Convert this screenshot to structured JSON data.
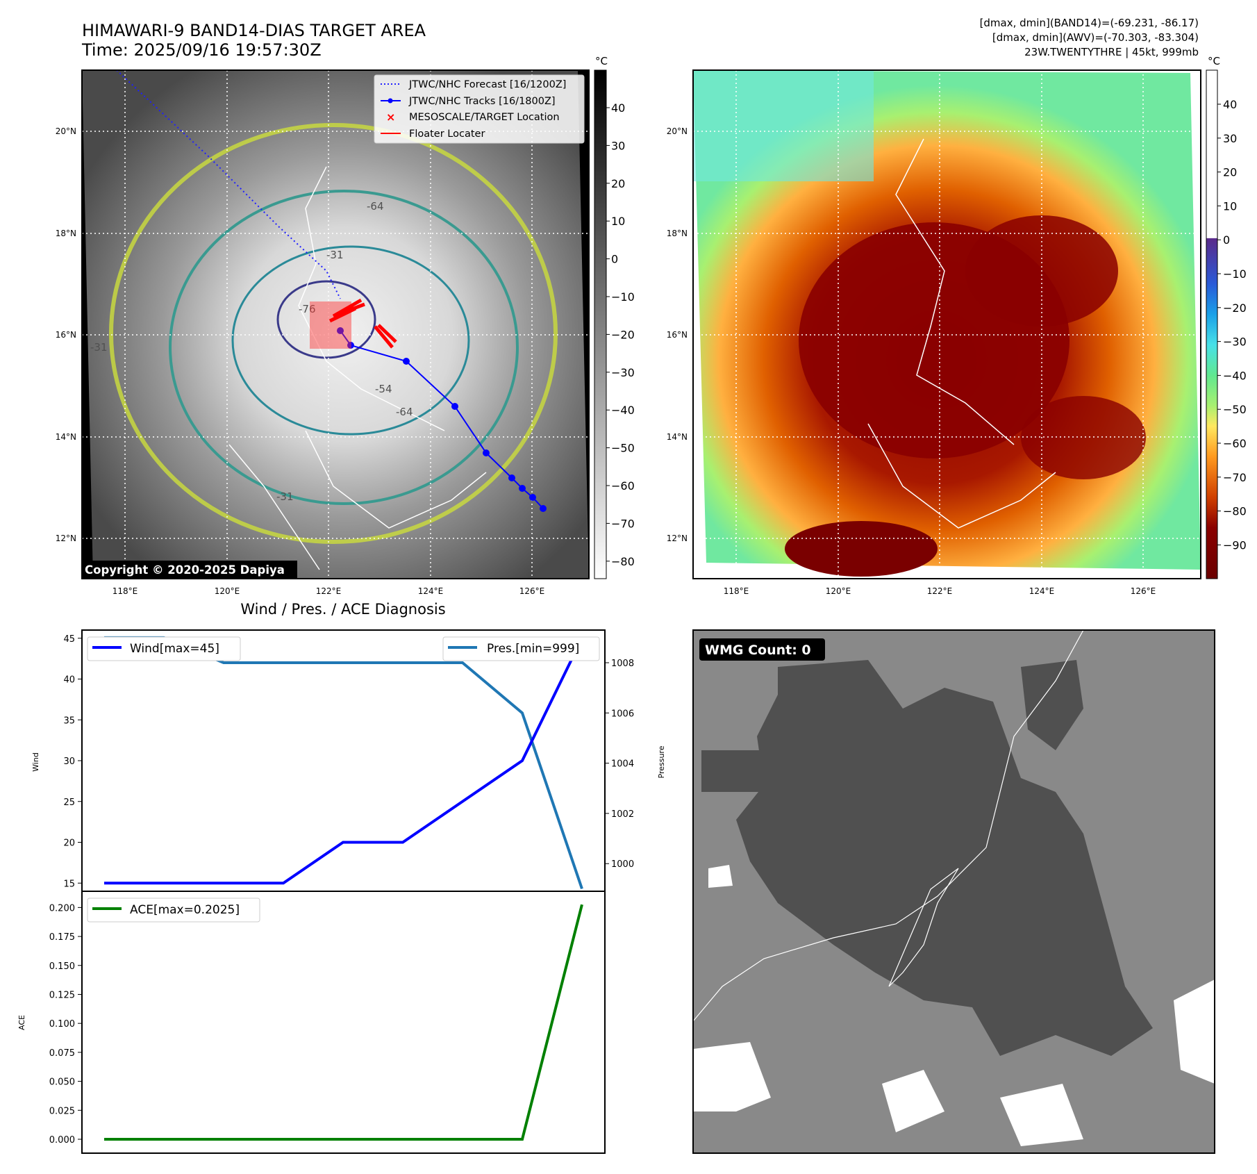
{
  "header": {
    "title_line1": "HIMAWARI-9 BAND14-DIAS TARGET AREA",
    "title_line2": "Time: 2025/09/16 19:57:30Z",
    "info_line1": "[dmax, dmin](BAND14)=(-69.231, -86.17)",
    "info_line2": "[dmax, dmin](AWV)=(-70.303, -83.304)",
    "info_line3": "23W.TWENTYTHRE | 45kt, 999mb"
  },
  "colorbar_unit": "°C",
  "colorbar_left_ticks": [
    "40",
    "30",
    "20",
    "10",
    "0",
    "−10",
    "−20",
    "−30",
    "−40",
    "−50",
    "−60",
    "−70",
    "−80"
  ],
  "colorbar_right_ticks": [
    "40",
    "30",
    "20",
    "10",
    "0",
    "−10",
    "−20",
    "−30",
    "−40",
    "−50",
    "−60",
    "−70",
    "−80",
    "−90"
  ],
  "map": {
    "lat_ticks": [
      "20°N",
      "18°N",
      "16°N",
      "14°N",
      "12°N"
    ],
    "lon_ticks": [
      "118°E",
      "120°E",
      "122°E",
      "124°E",
      "126°E"
    ],
    "copyright": "Copyright © 2020-2025 Dapiya",
    "contour_labels": [
      "-64",
      "-31",
      "-76",
      "-31",
      "-54",
      "-64",
      "-31"
    ]
  },
  "legend": {
    "forecast": "JTWC/NHC Forecast [16/1200Z]",
    "tracks": "JTWC/NHC Tracks [16/1800Z]",
    "target": "MESOSCALE/TARGET Location",
    "floater": "Floater Locater"
  },
  "colors": {
    "forecast": "#1f1fff",
    "track": "#0000ff",
    "target": "#ff0000",
    "wind": "#0000ff",
    "pressure": "#1f77b4",
    "ace": "#008000"
  },
  "diag_title": "Wind / Pres. / ACE Diagnosis",
  "wmg_label": "WMG Count: 0",
  "chart_data": [
    {
      "type": "line",
      "panel": "wind-pressure",
      "ylabel": "Wind",
      "y2label": "Pressure",
      "ylim": [
        14,
        46
      ],
      "y2lim": [
        998.9,
        1009.3
      ],
      "yticks": [
        "15",
        "20",
        "25",
        "30",
        "35",
        "40",
        "45"
      ],
      "y2ticks": [
        "1000",
        "1002",
        "1004",
        "1006",
        "1008"
      ],
      "series": [
        {
          "name": "Wind[max=45]",
          "axis": "left",
          "values": [
            15,
            15,
            15,
            15,
            20,
            20,
            25,
            30,
            45
          ]
        },
        {
          "name": "Pres.[min=999]",
          "axis": "right",
          "values": [
            1009,
            1009,
            1008,
            1008,
            1008,
            1008,
            1008,
            1006,
            999
          ]
        }
      ]
    },
    {
      "type": "line",
      "panel": "ace",
      "ylabel": "ACE",
      "ylim": [
        -0.012,
        0.214
      ],
      "yticks": [
        "0.000",
        "0.025",
        "0.050",
        "0.075",
        "0.100",
        "0.125",
        "0.150",
        "0.175",
        "0.200"
      ],
      "series": [
        {
          "name": "ACE[max=0.2025]",
          "values": [
            0,
            0,
            0,
            0,
            0,
            0,
            0,
            0,
            0.2025
          ]
        }
      ]
    }
  ]
}
